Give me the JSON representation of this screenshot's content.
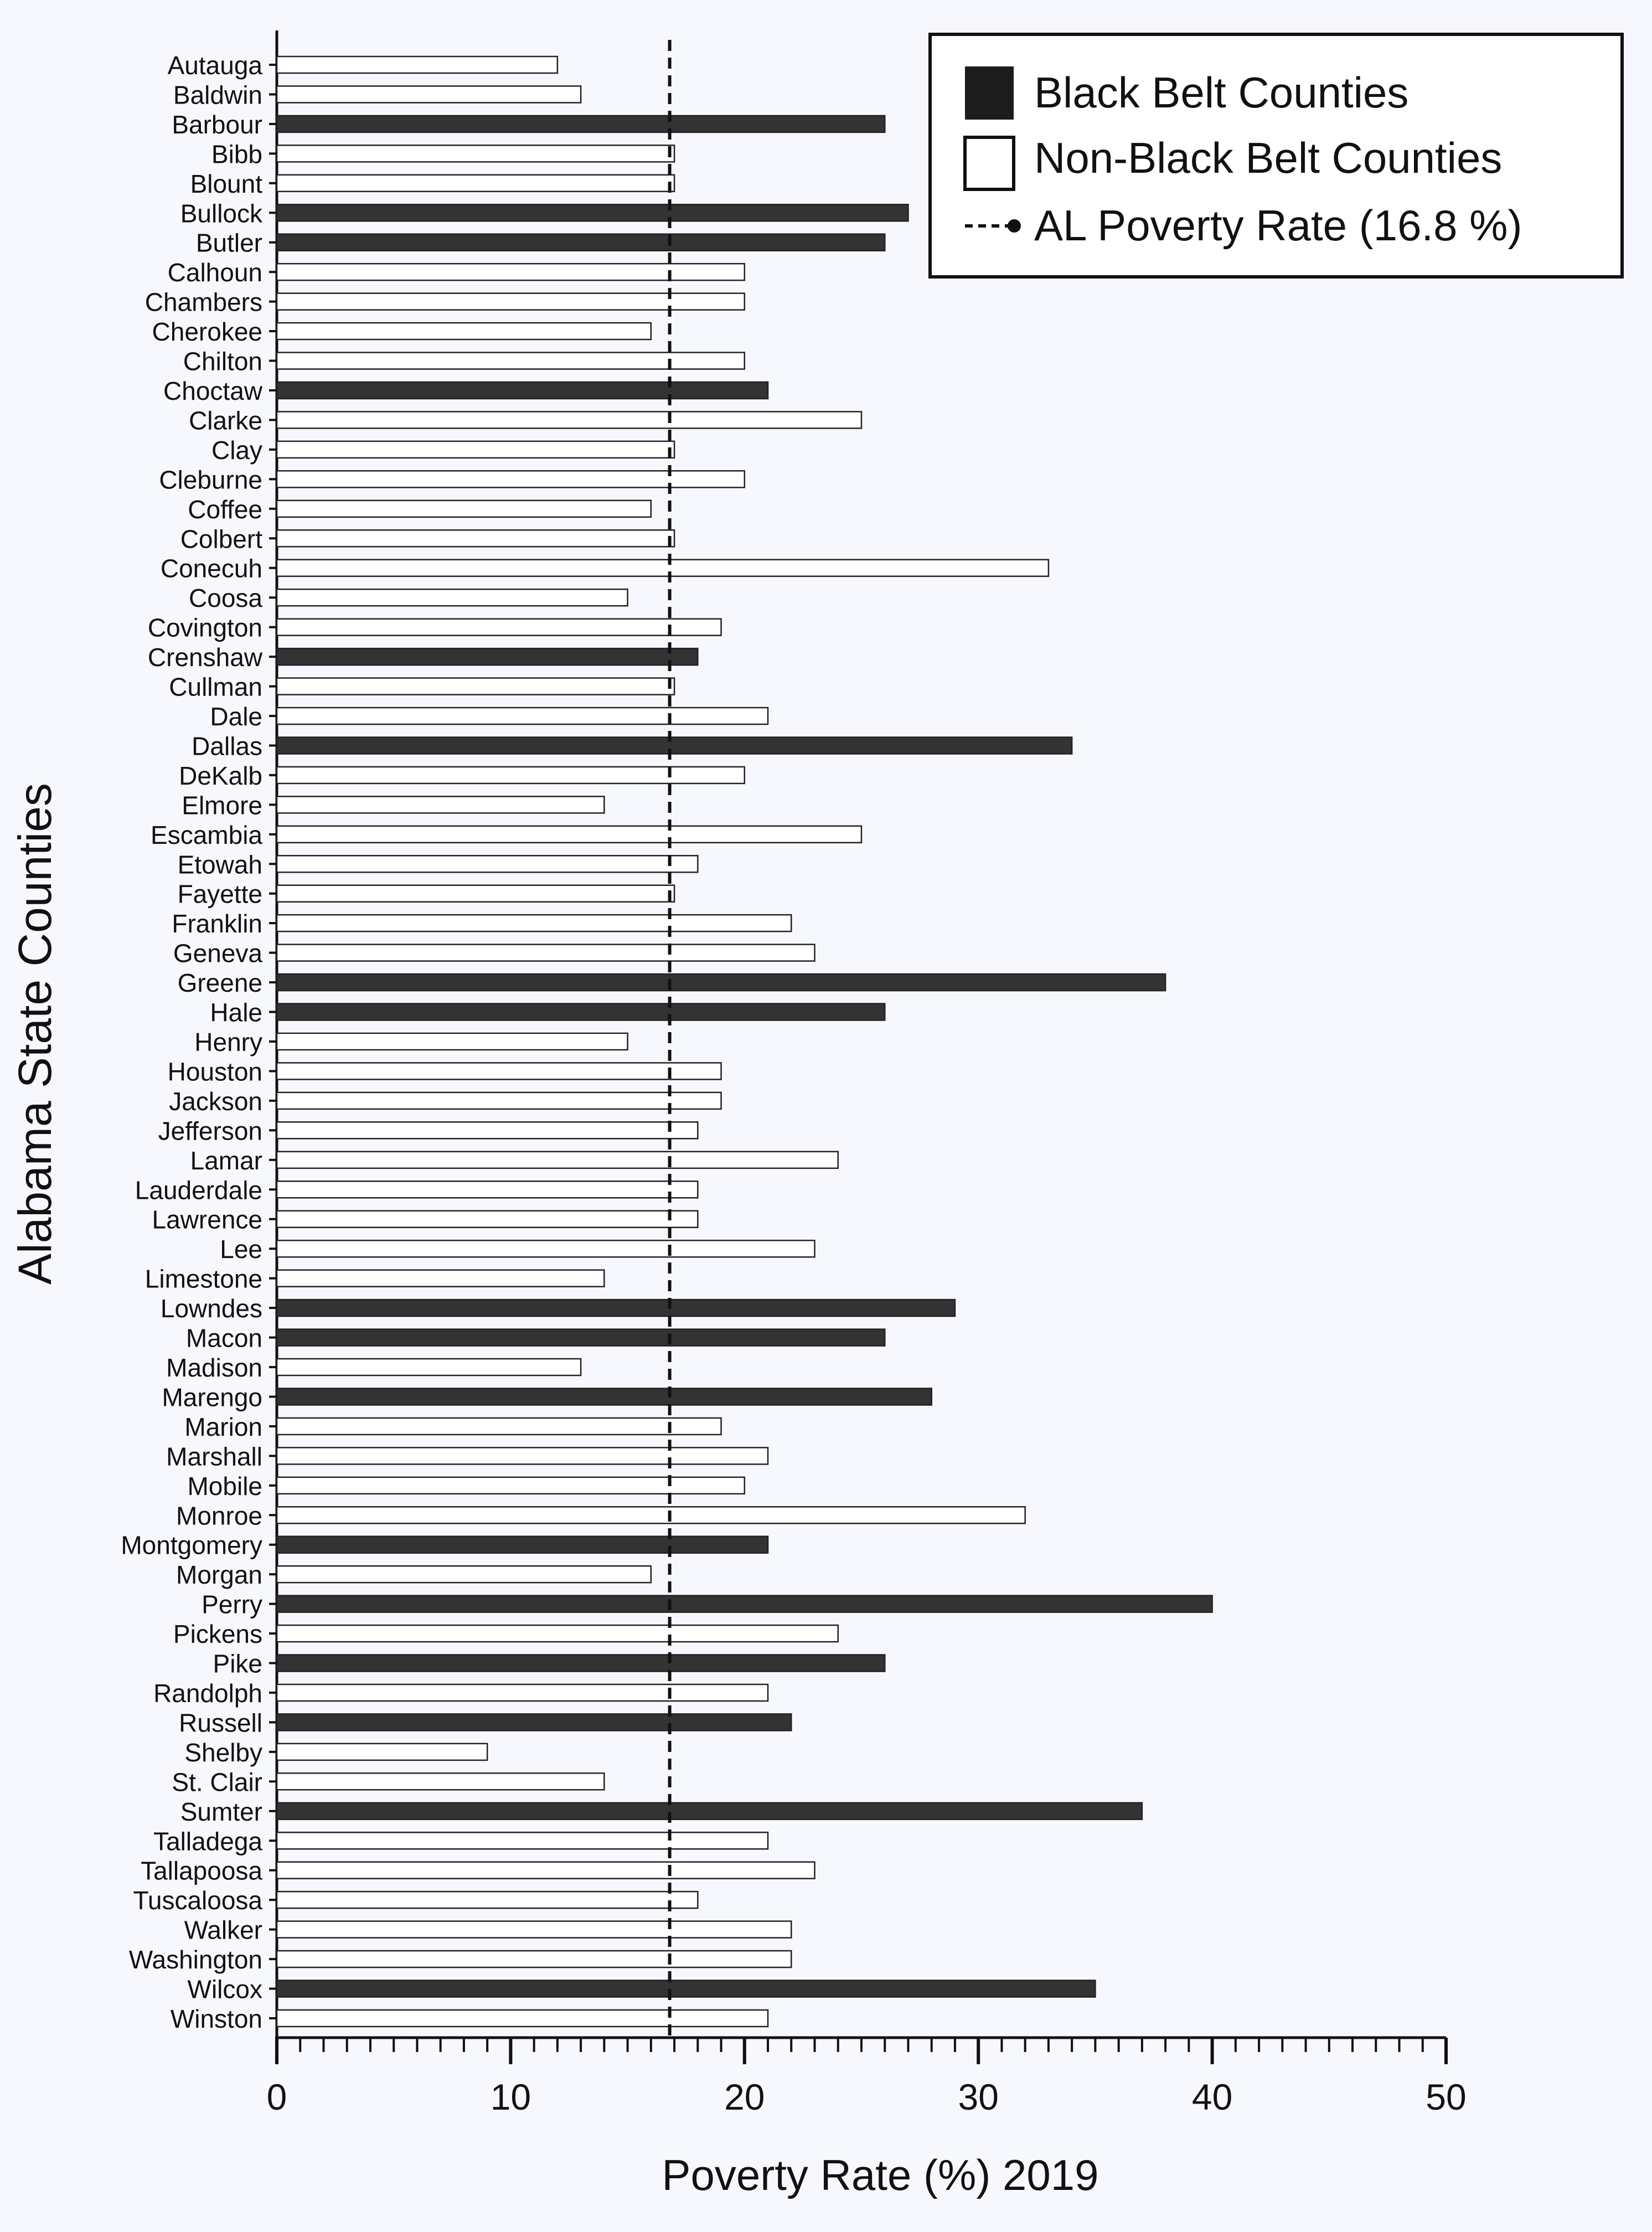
{
  "chart_data": {
    "type": "bar",
    "orientation": "horizontal",
    "title": "",
    "xlabel": "Poverty Rate (%) 2019",
    "ylabel": "Alabama State Counties",
    "xlim": [
      0,
      50
    ],
    "xticks": [
      0,
      10,
      20,
      30,
      40,
      50
    ],
    "grid": false,
    "legend_position": "top-right",
    "legend": {
      "black_belt": "Black Belt Counties",
      "non_black_belt": "Non-Black Belt Counties",
      "reference_line": "AL Poverty Rate (16.8 %)"
    },
    "reference_line": {
      "value": 16.8
    },
    "colors": {
      "black_belt": "#333333",
      "non_black_belt": "#ffffff",
      "outline": "#222222"
    },
    "categories": [
      "Autauga",
      "Baldwin",
      "Barbour",
      "Bibb",
      "Blount",
      "Bullock",
      "Butler",
      "Calhoun",
      "Chambers",
      "Cherokee",
      "Chilton",
      "Choctaw",
      "Clarke",
      "Clay",
      "Cleburne",
      "Coffee",
      "Colbert",
      "Conecuh",
      "Coosa",
      "Covington",
      "Crenshaw",
      "Cullman",
      "Dale",
      "Dallas",
      "DeKalb",
      "Elmore",
      "Escambia",
      "Etowah",
      "Fayette",
      "Franklin",
      "Geneva",
      "Greene",
      "Hale",
      "Henry",
      "Houston",
      "Jackson",
      "Jefferson",
      "Lamar",
      "Lauderdale",
      "Lawrence",
      "Lee",
      "Limestone",
      "Lowndes",
      "Macon",
      "Madison",
      "Marengo",
      "Marion",
      "Marshall",
      "Mobile",
      "Monroe",
      "Montgomery",
      "Morgan",
      "Perry",
      "Pickens",
      "Pike",
      "Randolph",
      "Russell",
      "Shelby",
      "St. Clair",
      "Sumter",
      "Talladega",
      "Tallapoosa",
      "Tuscaloosa",
      "Walker",
      "Washington",
      "Wilcox",
      "Winston"
    ],
    "values": [
      12,
      13,
      26,
      17,
      17,
      27,
      26,
      20,
      20,
      16,
      20,
      21,
      25,
      17,
      20,
      16,
      17,
      33,
      15,
      19,
      18,
      17,
      21,
      34,
      20,
      14,
      25,
      18,
      17,
      22,
      23,
      38,
      26,
      15,
      19,
      19,
      18,
      24,
      18,
      18,
      23,
      14,
      29,
      26,
      13,
      28,
      19,
      21,
      20,
      32,
      21,
      16,
      40,
      24,
      26,
      21,
      22,
      9,
      14,
      37,
      21,
      23,
      18,
      22,
      22,
      35,
      21
    ],
    "black_belt": [
      false,
      false,
      true,
      false,
      false,
      true,
      true,
      false,
      false,
      false,
      false,
      true,
      false,
      false,
      false,
      false,
      false,
      false,
      false,
      false,
      true,
      false,
      false,
      true,
      false,
      false,
      false,
      false,
      false,
      false,
      false,
      true,
      true,
      false,
      false,
      false,
      false,
      false,
      false,
      false,
      false,
      false,
      true,
      true,
      false,
      true,
      false,
      false,
      false,
      false,
      true,
      false,
      true,
      false,
      true,
      false,
      true,
      false,
      false,
      true,
      false,
      false,
      false,
      false,
      false,
      true,
      false
    ]
  }
}
